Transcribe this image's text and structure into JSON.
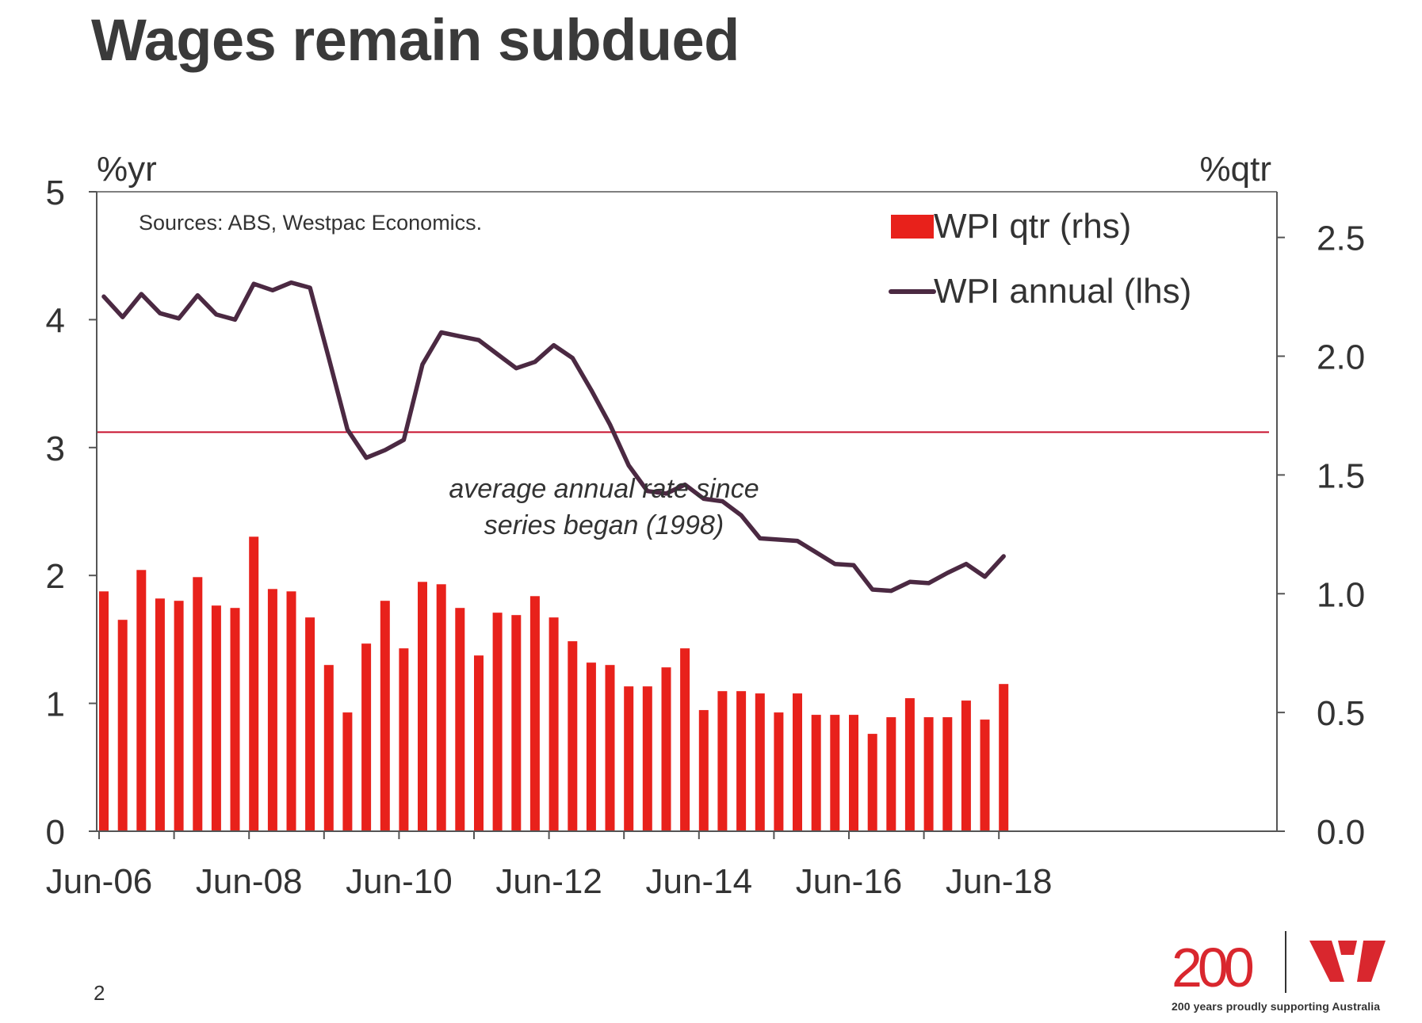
{
  "title": "Wages remain subdued",
  "page_number": "2",
  "logo": {
    "number": "200",
    "tagline": "200 years proudly supporting Australia",
    "brand_color": "#d9272e"
  },
  "colors": {
    "bars": "#e8211b",
    "line": "#4b2942",
    "average_line": "#c8102e",
    "axis": "#555555",
    "text": "#333333"
  },
  "chart_data": {
    "type": "bar",
    "title": "",
    "source": "Sources: ABS, Westpac Economics.",
    "left_axis": {
      "unit": "%yr",
      "range": [
        0,
        5
      ],
      "ticks": [
        "0",
        "1",
        "2",
        "3",
        "4",
        "5"
      ]
    },
    "right_axis": {
      "unit": "%qtr",
      "range": [
        0,
        2.6923
      ],
      "ticks": [
        "0.0",
        "0.5",
        "1.0",
        "1.5",
        "2.0",
        "2.5"
      ]
    },
    "x_axis": {
      "ticks": [
        "Jun-06",
        "Jun-08",
        "Jun-10",
        "Jun-12",
        "Jun-14",
        "Jun-16",
        "Jun-18"
      ]
    },
    "categories": [
      "Jun-06",
      "Sep-06",
      "Dec-06",
      "Mar-07",
      "Jun-07",
      "Sep-07",
      "Dec-07",
      "Mar-08",
      "Jun-08",
      "Sep-08",
      "Dec-08",
      "Mar-09",
      "Jun-09",
      "Sep-09",
      "Dec-09",
      "Mar-10",
      "Jun-10",
      "Sep-10",
      "Dec-10",
      "Mar-11",
      "Jun-11",
      "Sep-11",
      "Dec-11",
      "Mar-12",
      "Jun-12",
      "Sep-12",
      "Dec-12",
      "Mar-13",
      "Jun-13",
      "Sep-13",
      "Dec-13",
      "Mar-14",
      "Jun-14",
      "Sep-14",
      "Dec-14",
      "Mar-15",
      "Jun-15",
      "Sep-15",
      "Dec-15",
      "Mar-16",
      "Jun-16",
      "Sep-16",
      "Dec-16",
      "Mar-17",
      "Jun-17",
      "Sep-17",
      "Dec-17",
      "Mar-18",
      "Jun-18"
    ],
    "series": [
      {
        "name": "WPI qtr (rhs)",
        "type": "bar",
        "axis": "right",
        "values": [
          1.01,
          0.89,
          1.1,
          0.98,
          0.97,
          1.07,
          0.95,
          0.94,
          1.24,
          1.02,
          1.01,
          0.9,
          0.7,
          0.5,
          0.79,
          0.97,
          0.77,
          1.05,
          1.04,
          0.94,
          0.74,
          0.92,
          0.91,
          0.99,
          0.9,
          0.8,
          0.71,
          0.7,
          0.61,
          0.61,
          0.69,
          0.77,
          0.51,
          0.59,
          0.59,
          0.58,
          0.5,
          0.58,
          0.49,
          0.49,
          0.49,
          0.41,
          0.48,
          0.56,
          0.48,
          0.48,
          0.55,
          0.47,
          0.62
        ]
      },
      {
        "name": "WPI annual (lhs)",
        "type": "line",
        "axis": "left",
        "values": [
          4.18,
          4.02,
          4.2,
          4.05,
          4.01,
          4.19,
          4.04,
          4.0,
          4.28,
          4.23,
          4.29,
          4.25,
          3.7,
          3.14,
          2.92,
          2.98,
          3.06,
          3.65,
          3.9,
          3.87,
          3.84,
          3.73,
          3.62,
          3.67,
          3.8,
          3.7,
          3.45,
          3.18,
          2.86,
          2.66,
          2.64,
          2.71,
          2.6,
          2.58,
          2.47,
          2.29,
          2.28,
          2.27,
          2.18,
          2.09,
          2.08,
          1.89,
          1.88,
          1.95,
          1.94,
          2.02,
          2.09,
          1.99,
          2.15
        ]
      }
    ],
    "average_line": {
      "value": 3.12,
      "axis": "left",
      "label_line1": "average annual rate since",
      "label_line2": "series began (1998)"
    },
    "legend_position": "top-right",
    "grid": false
  }
}
